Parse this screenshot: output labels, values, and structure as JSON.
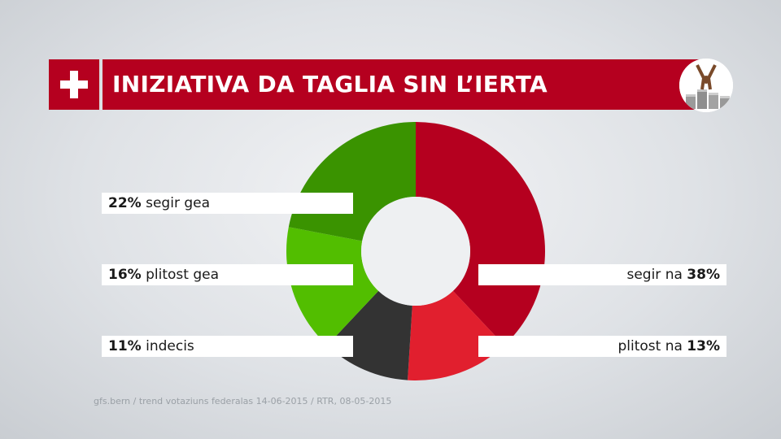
{
  "header": {
    "title": "INIZIATIVA DA TAGLIA SIN L’IERTA"
  },
  "source": "gfs.bern / trend votaziuns federalas 14-06-2015 / RTR, 08-05-2015",
  "colors": {
    "brand_red": "#b5001f",
    "segir_gea": "#3a9300",
    "plitost_gea": "#52be00",
    "indecis": "#333333",
    "plitost_na": "#e11f2e",
    "segir_na": "#b5001f"
  },
  "chart_data": {
    "type": "pie",
    "donut": true,
    "slices": [
      {
        "key": "segir_na",
        "value": 38,
        "pct_label": "38%",
        "text": "segir na",
        "color": "#b5001f",
        "side": "right"
      },
      {
        "key": "plitost_na",
        "value": 13,
        "pct_label": "13%",
        "text": "plitost na",
        "color": "#e11f2e",
        "side": "right"
      },
      {
        "key": "indecis",
        "value": 11,
        "pct_label": "11%",
        "text": "indecis",
        "color": "#333333",
        "side": "left"
      },
      {
        "key": "plitost_gea",
        "value": 16,
        "pct_label": "16%",
        "text": "plitost gea",
        "color": "#52be00",
        "side": "left"
      },
      {
        "key": "segir_gea",
        "value": 22,
        "pct_label": "22%",
        "text": "segir gea",
        "color": "#3a9300",
        "side": "left"
      }
    ]
  }
}
